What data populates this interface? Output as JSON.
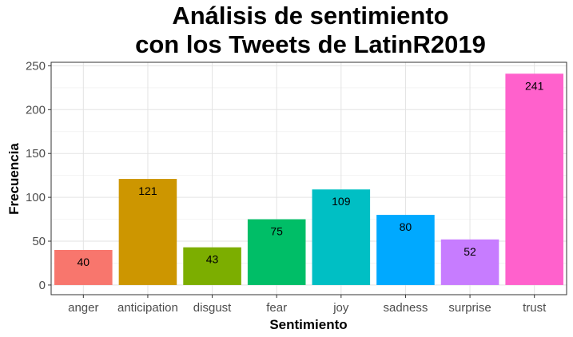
{
  "chart_data": {
    "type": "bar",
    "title_line1": "Análisis de sentimiento",
    "title_line2": "con los Tweets de LatinR2019",
    "xlabel": "Sentimiento",
    "ylabel": "Frecuencia",
    "categories": [
      "anger",
      "anticipation",
      "disgust",
      "fear",
      "joy",
      "sadness",
      "surprise",
      "trust"
    ],
    "values": [
      40,
      121,
      43,
      75,
      109,
      80,
      52,
      241
    ],
    "colors": [
      "#F8766D",
      "#CD9600",
      "#7CAE00",
      "#00BE67",
      "#00BFC4",
      "#00A9FF",
      "#C77CFF",
      "#FF61CC"
    ],
    "ylim": [
      -11,
      254
    ],
    "yticks": [
      0,
      50,
      100,
      150,
      200,
      250
    ],
    "grid": true,
    "legend": "none"
  }
}
